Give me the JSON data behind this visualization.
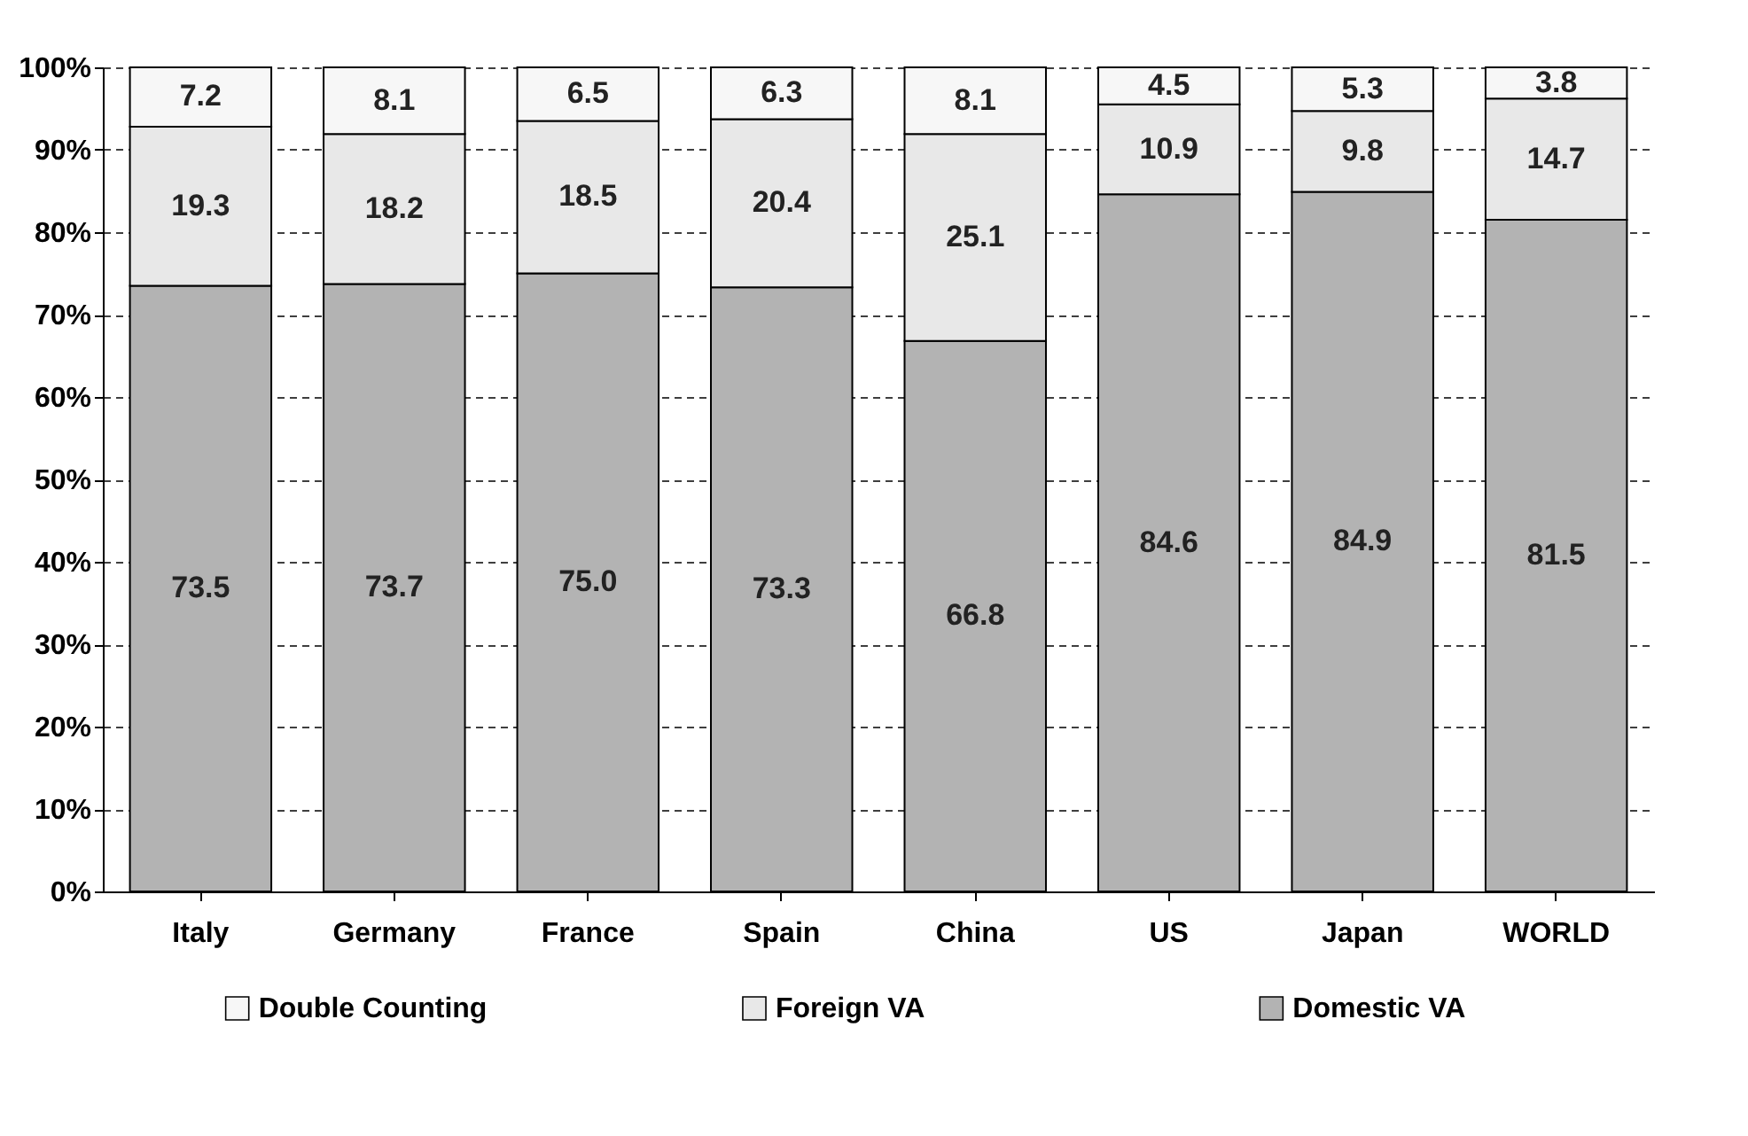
{
  "chart_data": {
    "type": "bar",
    "stacked": true,
    "legend": "bottom",
    "grid": "y",
    "categories": [
      "Italy",
      "Germany",
      "France",
      "Spain",
      "China",
      "US",
      "Japan",
      "WORLD"
    ],
    "series": [
      {
        "name": "Domestic VA",
        "color": "#b3b3b3",
        "values": [
          73.5,
          73.7,
          75.0,
          73.3,
          66.8,
          84.6,
          84.9,
          81.5
        ]
      },
      {
        "name": "Foreign VA",
        "color": "#e8e8e8",
        "values": [
          19.3,
          18.2,
          18.5,
          20.4,
          25.1,
          10.9,
          9.8,
          14.7
        ]
      },
      {
        "name": "Double Counting",
        "color": "#f7f7f7",
        "values": [
          7.2,
          8.1,
          6.5,
          6.3,
          8.1,
          4.5,
          5.3,
          3.8
        ]
      }
    ],
    "value_labels": [
      [
        "73.5",
        "73.7",
        "75.0",
        "73.3",
        "66.8",
        "84.6",
        "84.9",
        "81.5"
      ],
      [
        "19.3",
        "18.2",
        "18.5",
        "20.4",
        "25.1",
        "10.9",
        "9.8",
        "14.7"
      ],
      [
        "7.2",
        "8.1",
        "6.5",
        "6.3",
        "8.1",
        "4.5",
        "5.3",
        "3.8"
      ]
    ],
    "ylim": [
      0,
      100
    ],
    "yticks": [
      {
        "value": 0,
        "label": "0%"
      },
      {
        "value": 10,
        "label": "10%"
      },
      {
        "value": 20,
        "label": "20%"
      },
      {
        "value": 30,
        "label": "30%"
      },
      {
        "value": 40,
        "label": "40%"
      },
      {
        "value": 50,
        "label": "50%"
      },
      {
        "value": 60,
        "label": "60%"
      },
      {
        "value": 70,
        "label": "70%"
      },
      {
        "value": 80,
        "label": "80%"
      },
      {
        "value": 90,
        "label": "90%"
      },
      {
        "value": 100,
        "label": "100%"
      }
    ]
  }
}
